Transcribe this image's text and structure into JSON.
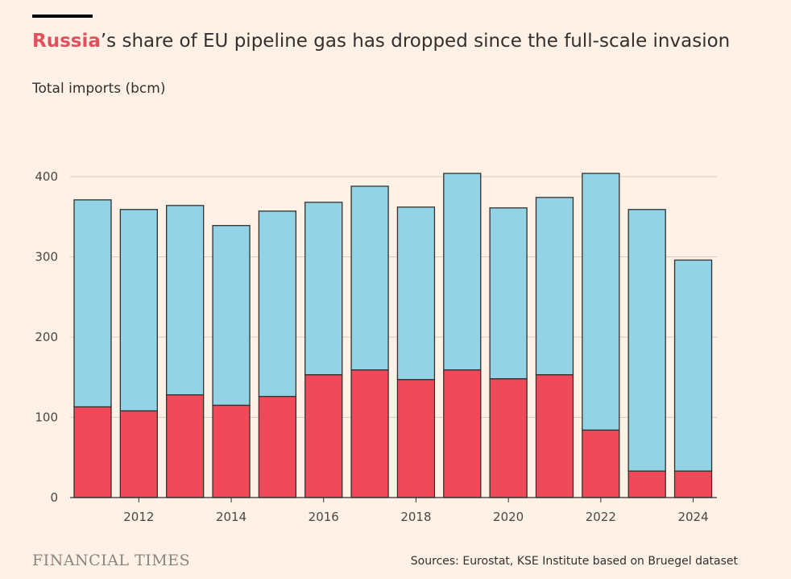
{
  "header": {
    "title_highlight": "Russia",
    "title_rest": "’s share of EU pipeline gas has dropped since the full-scale invasion",
    "subtitle": "Total imports (bcm)"
  },
  "footer": {
    "brand": "FINANCIAL TIMES",
    "source": "Sources: Eurostat, KSE Institute based on Bruegel dataset"
  },
  "colors": {
    "background": "#fff1e5",
    "russia": "#f04a5a",
    "other": "#93d3e6",
    "bar_outline": "#33302e",
    "grid": "#d9ccc1",
    "highlight_text": "#e3505d"
  },
  "chart_data": {
    "type": "bar",
    "stacked": true,
    "categories": [
      "2011",
      "2012",
      "2013",
      "2014",
      "2015",
      "2016",
      "2017",
      "2018",
      "2019",
      "2020",
      "2021",
      "2022",
      "2023",
      "2024"
    ],
    "x_tick_labels": [
      "2012",
      "2014",
      "2016",
      "2018",
      "2020",
      "2022",
      "2024"
    ],
    "series": [
      {
        "key": "russia",
        "values": [
          113,
          108,
          128,
          115,
          126,
          153,
          159,
          147,
          159,
          148,
          153,
          84,
          33,
          33
        ]
      },
      {
        "key": "other",
        "values": [
          258,
          251,
          236,
          224,
          231,
          215,
          229,
          215,
          245,
          213,
          221,
          320,
          326,
          263
        ]
      }
    ],
    "totals": [
      371,
      359,
      364,
      339,
      357,
      368,
      388,
      362,
      404,
      361,
      374,
      404,
      359,
      296
    ],
    "ylim": [
      0,
      400
    ],
    "yticks": [
      0,
      100,
      200,
      300,
      400
    ],
    "grid": true,
    "ylabel": "Total imports (bcm)",
    "xlabel": ""
  }
}
